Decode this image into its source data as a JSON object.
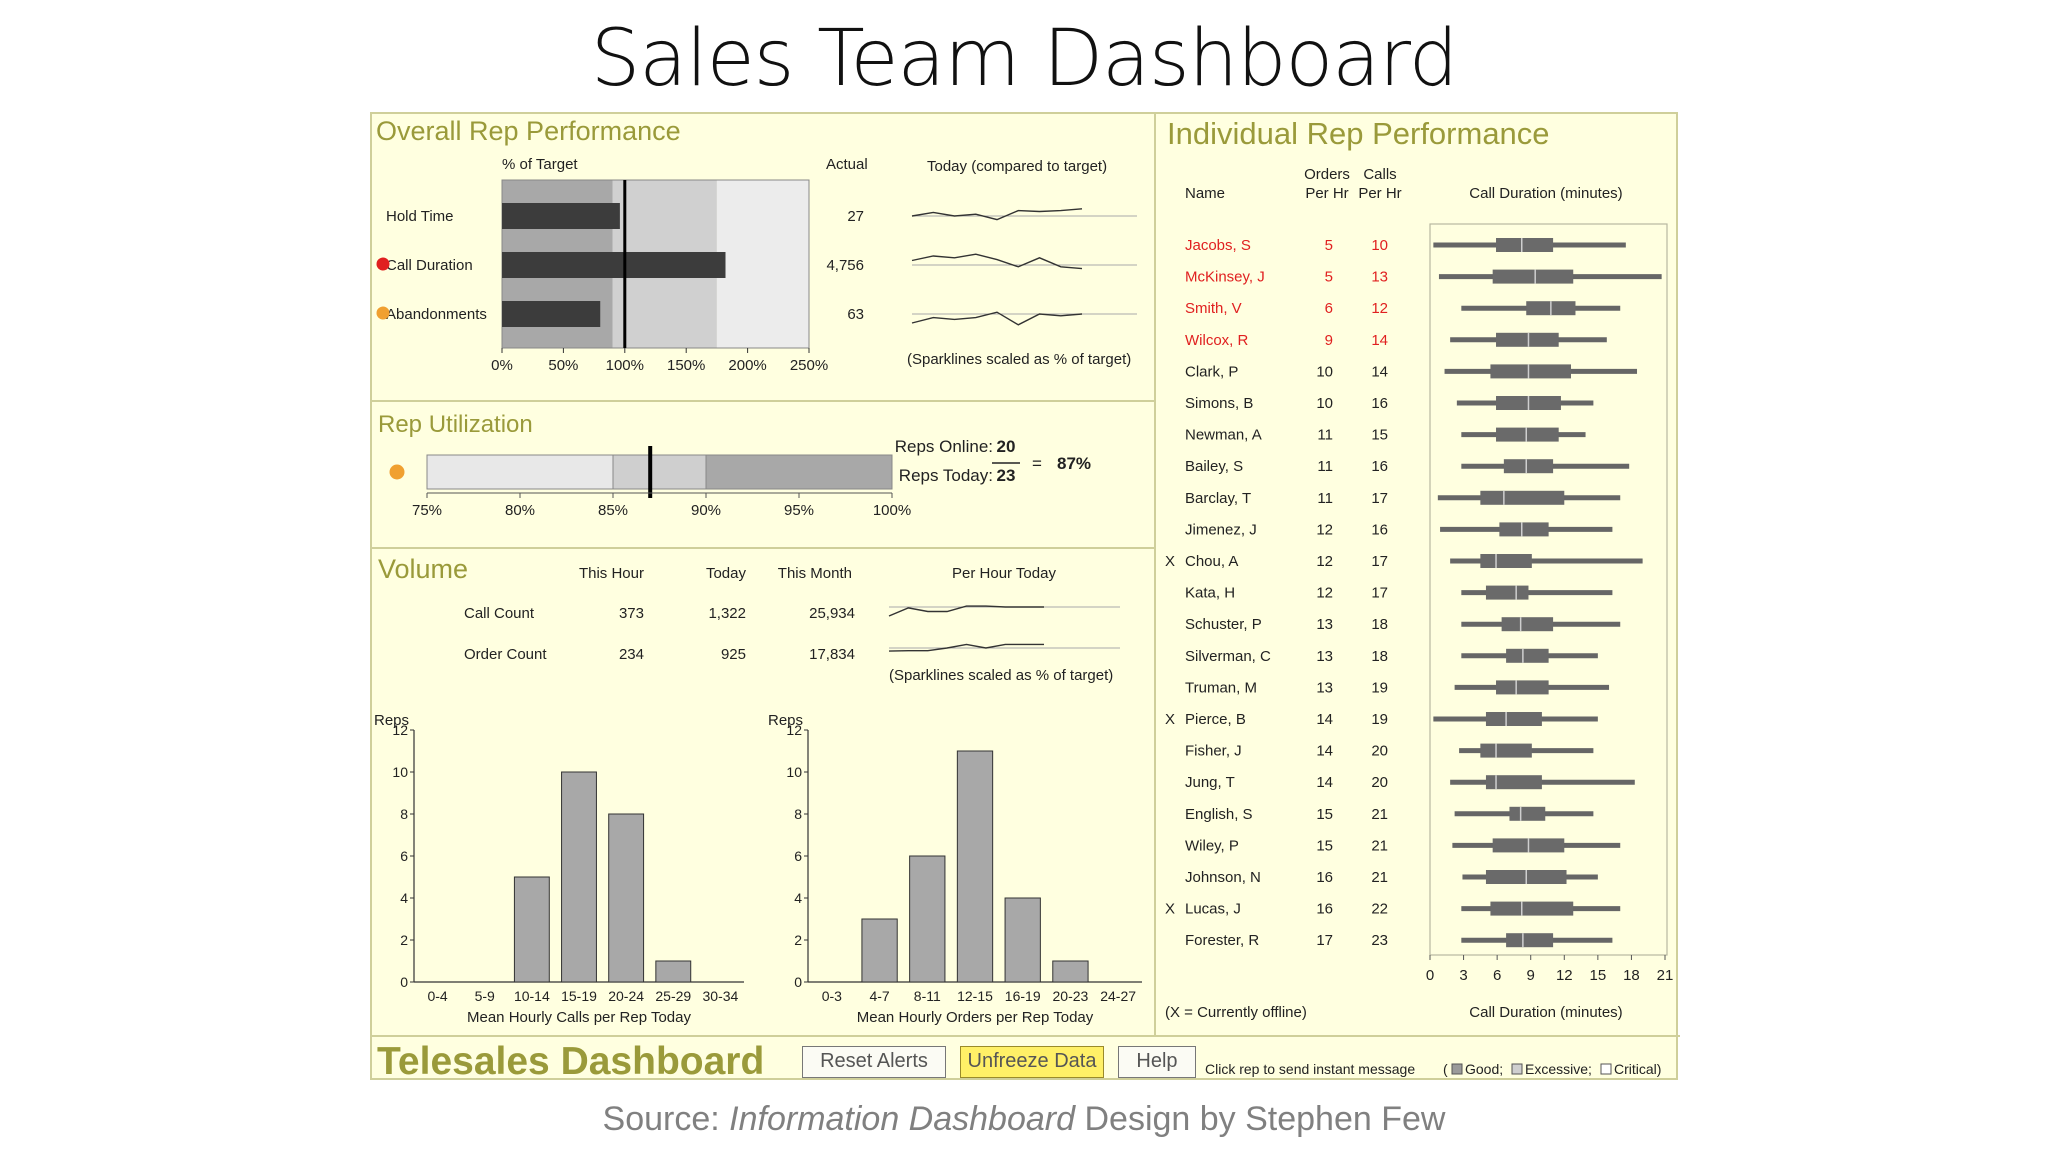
{
  "slide": {
    "title": "Sales Team Dashboard",
    "source_prefix": "Source: ",
    "source_book": "Information Dashboard",
    "source_suffix": " Design by Stephen Few"
  },
  "colors": {
    "background": "#ffffe0",
    "panel_title": "#9a9a3a",
    "alert_red": "#e02020",
    "alert_orange": "#f0a030",
    "bar_dark": "#3c3c3c",
    "range_gray": "#a8a8a8"
  },
  "overall": {
    "title": "Overall Rep Performance",
    "pct_header": "% of Target",
    "actual_header": "Actual",
    "today_header": "Today (compared to target)",
    "sparkline_note": "(Sparklines scaled as % of target)",
    "ticks": [
      "0%",
      "50%",
      "100%",
      "150%",
      "200%",
      "250%"
    ],
    "rows": [
      {
        "label": "Hold Time",
        "actual": "27",
        "alert": "none"
      },
      {
        "label": "Call Duration",
        "actual": "4,756",
        "alert": "red"
      },
      {
        "label": "Abandonments",
        "actual": "63",
        "alert": "orange"
      }
    ]
  },
  "utilization": {
    "title": "Rep Utilization",
    "online_label": "Reps Online:",
    "online_value": "20",
    "today_label": "Reps Today:",
    "today_value": "23",
    "equals": "=",
    "result": "87%",
    "ticks": [
      "75%",
      "80%",
      "85%",
      "90%",
      "95%",
      "100%"
    ],
    "alert": "orange"
  },
  "volume": {
    "title": "Volume",
    "headers": [
      "This Hour",
      "Today",
      "This Month",
      "Per Hour Today"
    ],
    "rows": [
      {
        "label": "Call Count",
        "hour": "373",
        "today": "1,322",
        "month": "25,934"
      },
      {
        "label": "Order Count",
        "hour": "234",
        "today": "925",
        "month": "17,834"
      }
    ],
    "sparkline_note": "(Sparklines scaled as % of target)"
  },
  "individual": {
    "title": "Individual Rep Performance",
    "col_name": "Name",
    "col_orders_1": "Orders",
    "col_orders_2": "Per Hr",
    "col_calls_1": "Calls",
    "col_calls_2": "Per Hr",
    "col_duration": "Call Duration (minutes)",
    "axis_label": "Call Duration (minutes)",
    "axis_ticks": [
      "0",
      "3",
      "6",
      "9",
      "12",
      "15",
      "18",
      "21"
    ],
    "offline_note": "(X = Currently offline)",
    "offline_marker": "X"
  },
  "footer": {
    "title": "Telesales Dashboard",
    "reset_label": "Reset Alerts",
    "unfreeze_label": "Unfreeze Data",
    "help_label": "Help",
    "legend_text": "Click rep to send instant message",
    "legend_open": "(",
    "legend_good": "Good;",
    "legend_excessive": "Excessive;",
    "legend_critical": "Critical)"
  },
  "chart_data": [
    {
      "type": "bar",
      "title": "Overall Rep Performance",
      "xlabel": "% of Target",
      "categories": [
        "Hold Time",
        "Call Duration",
        "Abandonments"
      ],
      "values": [
        96,
        182,
        80
      ],
      "target": 100,
      "ranges": [
        [
          0,
          90
        ],
        [
          90,
          175
        ],
        [
          175,
          250
        ]
      ],
      "xlim": [
        0,
        250
      ],
      "sparklines": [
        [
          50,
          46,
          50,
          48,
          54,
          44,
          45,
          44,
          42
        ],
        [
          45,
          40,
          42,
          38,
          44,
          52,
          42,
          52,
          54
        ],
        [
          60,
          54,
          56,
          54,
          48,
          62,
          50,
          52,
          50
        ]
      ]
    },
    {
      "type": "bar",
      "title": "Rep Utilization",
      "values": [
        87
      ],
      "target": 87,
      "ranges": [
        [
          75,
          85
        ],
        [
          85,
          90
        ],
        [
          90,
          100
        ]
      ],
      "xlim": [
        75,
        100
      ]
    },
    {
      "type": "line",
      "title": "Volume Per Hour Today",
      "series": [
        {
          "name": "Call Count",
          "values": [
            58,
            40,
            48,
            48,
            36,
            36,
            38,
            38,
            38
          ]
        },
        {
          "name": "Order Count",
          "values": [
            45,
            44,
            44,
            38,
            30,
            38,
            30,
            30,
            30
          ]
        }
      ]
    },
    {
      "type": "bar",
      "xlabel": "Mean Hourly Calls per Rep Today",
      "ylabel": "Reps",
      "categories": [
        "0-4",
        "5-9",
        "10-14",
        "15-19",
        "20-24",
        "25-29",
        "30-34"
      ],
      "values": [
        0,
        0,
        5,
        10,
        8,
        1,
        0
      ],
      "ylim": [
        0,
        12
      ],
      "yticks": [
        "0",
        "2",
        "4",
        "6",
        "8",
        "10",
        "12"
      ]
    },
    {
      "type": "bar",
      "xlabel": "Mean Hourly Orders per Rep Today",
      "ylabel": "Reps",
      "categories": [
        "0-3",
        "4-7",
        "8-11",
        "12-15",
        "16-19",
        "20-23",
        "24-27"
      ],
      "values": [
        0,
        3,
        6,
        11,
        4,
        1,
        0
      ],
      "ylim": [
        0,
        12
      ],
      "yticks": [
        "0",
        "2",
        "4",
        "6",
        "8",
        "10",
        "12"
      ]
    },
    {
      "type": "table",
      "title": "Individual Rep Performance",
      "xlabel": "Call Duration (minutes)",
      "xlim": [
        0,
        21
      ],
      "reps": [
        {
          "name": "Jacobs, S",
          "orders": "5",
          "calls": "10",
          "offline": false,
          "alert": true,
          "range": [
            0.3,
            17.5
          ],
          "box": [
            5.9,
            11
          ],
          "median": 8.2
        },
        {
          "name": "McKinsey, J",
          "orders": "5",
          "calls": "13",
          "offline": false,
          "alert": true,
          "range": [
            0.8,
            20.7
          ],
          "box": [
            5.6,
            12.8
          ],
          "median": 9.4
        },
        {
          "name": "Smith, V",
          "orders": "6",
          "calls": "12",
          "offline": false,
          "alert": true,
          "range": [
            2.8,
            17
          ],
          "box": [
            8.6,
            13
          ],
          "median": 10.8
        },
        {
          "name": "Wilcox, R",
          "orders": "9",
          "calls": "14",
          "offline": false,
          "alert": true,
          "range": [
            1.8,
            15.8
          ],
          "box": [
            5.9,
            11.5
          ],
          "median": 8.8
        },
        {
          "name": "Clark, P",
          "orders": "10",
          "calls": "14",
          "offline": false,
          "alert": false,
          "range": [
            1.3,
            18.5
          ],
          "box": [
            5.4,
            12.6
          ],
          "median": 8.8
        },
        {
          "name": "Simons, B",
          "orders": "10",
          "calls": "16",
          "offline": false,
          "alert": false,
          "range": [
            2.4,
            14.6
          ],
          "box": [
            5.9,
            11.7
          ],
          "median": 8.8
        },
        {
          "name": "Newman, A",
          "orders": "11",
          "calls": "15",
          "offline": false,
          "alert": false,
          "range": [
            2.8,
            13.9
          ],
          "box": [
            5.9,
            11.5
          ],
          "median": 8.6
        },
        {
          "name": "Bailey, S",
          "orders": "11",
          "calls": "16",
          "offline": false,
          "alert": false,
          "range": [
            2.8,
            17.8
          ],
          "box": [
            6.6,
            11
          ],
          "median": 8.6
        },
        {
          "name": "Barclay, T",
          "orders": "11",
          "calls": "17",
          "offline": false,
          "alert": false,
          "range": [
            0.7,
            17
          ],
          "box": [
            4.5,
            12
          ],
          "median": 6.6
        },
        {
          "name": "Jimenez, J",
          "orders": "12",
          "calls": "16",
          "offline": false,
          "alert": false,
          "range": [
            0.9,
            16.3
          ],
          "box": [
            6.2,
            10.6
          ],
          "median": 8.2
        },
        {
          "name": "Chou, A",
          "orders": "12",
          "calls": "17",
          "offline": true,
          "alert": false,
          "range": [
            1.8,
            19
          ],
          "box": [
            4.5,
            9.1
          ],
          "median": 5.9
        },
        {
          "name": "Kata, H",
          "orders": "12",
          "calls": "17",
          "offline": false,
          "alert": false,
          "range": [
            2.8,
            16.3
          ],
          "box": [
            5,
            8.8
          ],
          "median": 7.7
        },
        {
          "name": "Schuster, P",
          "orders": "13",
          "calls": "18",
          "offline": false,
          "alert": false,
          "range": [
            2.8,
            17
          ],
          "box": [
            6.4,
            11
          ],
          "median": 8.1
        },
        {
          "name": "Silverman, C",
          "orders": "13",
          "calls": "18",
          "offline": false,
          "alert": false,
          "range": [
            2.8,
            15
          ],
          "box": [
            6.8,
            10.6
          ],
          "median": 8.3
        },
        {
          "name": "Truman, M",
          "orders": "13",
          "calls": "19",
          "offline": false,
          "alert": false,
          "range": [
            2.2,
            16
          ],
          "box": [
            5.9,
            10.6
          ],
          "median": 7.7
        },
        {
          "name": "Pierce, B",
          "orders": "14",
          "calls": "19",
          "offline": true,
          "alert": false,
          "range": [
            0.3,
            15
          ],
          "box": [
            5,
            10
          ],
          "median": 6.8
        },
        {
          "name": "Fisher, J",
          "orders": "14",
          "calls": "20",
          "offline": false,
          "alert": false,
          "range": [
            2.6,
            14.6
          ],
          "box": [
            4.5,
            9.1
          ],
          "median": 5.9
        },
        {
          "name": "Jung, T",
          "orders": "14",
          "calls": "20",
          "offline": false,
          "alert": false,
          "range": [
            1.8,
            18.3
          ],
          "box": [
            5,
            10
          ],
          "median": 5.9
        },
        {
          "name": "English, S",
          "orders": "15",
          "calls": "21",
          "offline": false,
          "alert": false,
          "range": [
            2.2,
            14.6
          ],
          "box": [
            7.1,
            10.3
          ],
          "median": 8.1
        },
        {
          "name": "Wiley, P",
          "orders": "15",
          "calls": "21",
          "offline": false,
          "alert": false,
          "range": [
            2,
            17
          ],
          "box": [
            5.6,
            12
          ],
          "median": 8.8
        },
        {
          "name": "Johnson, N",
          "orders": "16",
          "calls": "21",
          "offline": false,
          "alert": false,
          "range": [
            2.9,
            15
          ],
          "box": [
            5,
            12.2
          ],
          "median": 8.6
        },
        {
          "name": "Lucas, J",
          "orders": "16",
          "calls": "22",
          "offline": true,
          "alert": false,
          "range": [
            2.8,
            17
          ],
          "box": [
            5.4,
            12.8
          ],
          "median": 8.2
        },
        {
          "name": "Forester, R",
          "orders": "17",
          "calls": "23",
          "offline": false,
          "alert": false,
          "range": [
            2.8,
            16.3
          ],
          "box": [
            6.8,
            11
          ],
          "median": 8.3
        }
      ]
    }
  ]
}
